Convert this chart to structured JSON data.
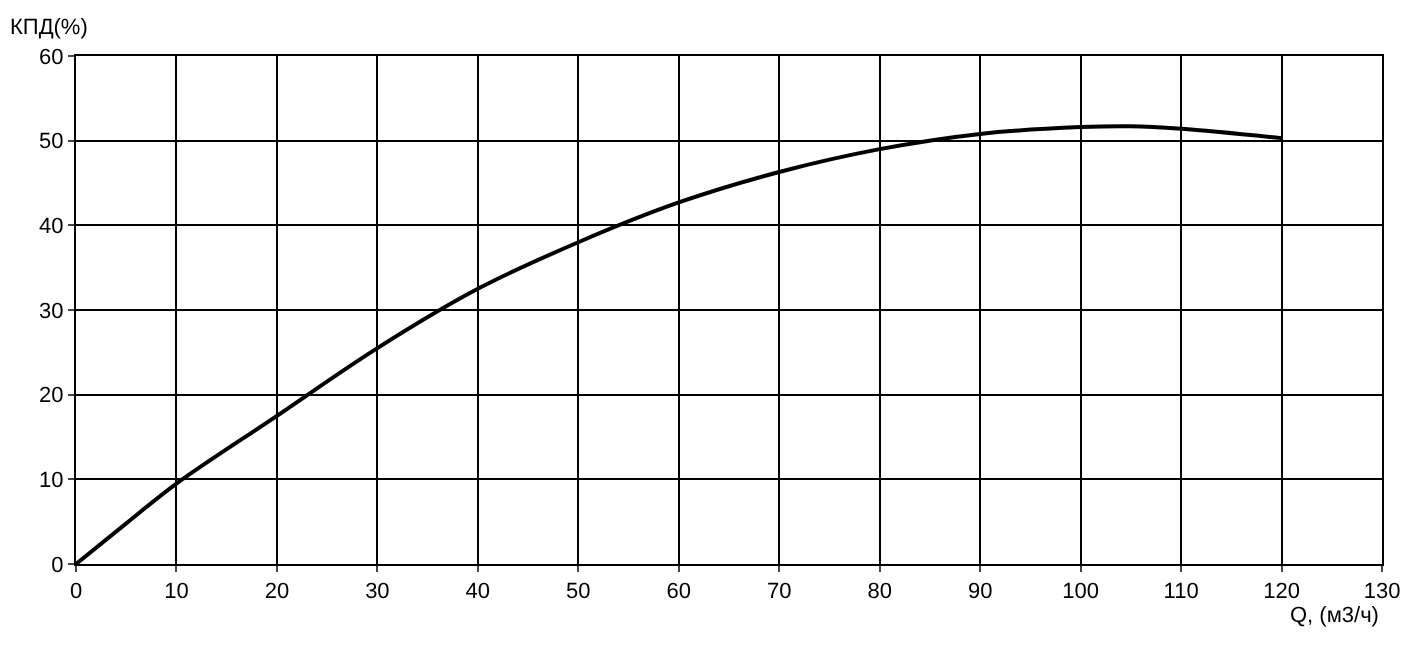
{
  "chart_data": {
    "type": "line",
    "xlabel": "Q, (м3/ч)",
    "ylabel": "КПД(%)",
    "x": [
      0,
      5,
      10,
      20,
      30,
      40,
      50,
      60,
      70,
      80,
      90,
      100,
      105,
      110,
      120
    ],
    "series": [
      {
        "color": "#000000",
        "values": [
          0,
          4.8,
          9.5,
          17.5,
          25.5,
          32.5,
          38,
          42.7,
          46.3,
          49,
          50.8,
          51.6,
          51.7,
          51.4,
          50.3
        ]
      }
    ],
    "xlim": [
      0,
      130
    ],
    "xticks": [
      0,
      10,
      20,
      30,
      40,
      50,
      60,
      70,
      80,
      90,
      100,
      110,
      120,
      130
    ],
    "ylim": [
      0,
      60
    ],
    "yticks": [
      0,
      10,
      20,
      30,
      40,
      50,
      60
    ],
    "grid": true,
    "legend": false,
    "marker": "none",
    "line_style": "solid"
  }
}
